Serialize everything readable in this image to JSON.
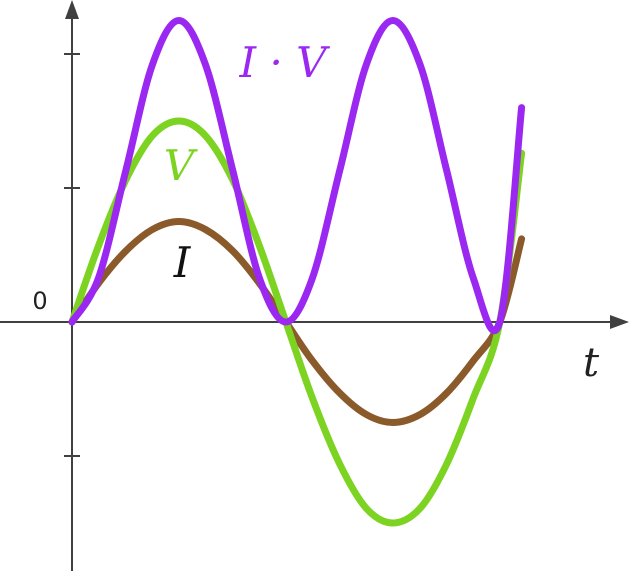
{
  "chart_data": {
    "type": "line",
    "title": "",
    "xlabel": "t",
    "ylabel": "",
    "origin_label": "0",
    "xlim": [
      0,
      6.3
    ],
    "ylim": [
      -1.5,
      2.25
    ],
    "grid": false,
    "legend": "none",
    "series": [
      {
        "name": "I",
        "color": "#8B5A2B",
        "x": [
          0,
          0.39,
          0.79,
          1.18,
          1.57,
          1.96,
          2.36,
          2.75,
          3.14,
          3.53,
          3.93,
          4.32,
          4.71,
          5.11,
          5.5,
          5.89,
          6.28,
          6.6
        ],
        "values": [
          0,
          0.29,
          0.53,
          0.69,
          0.75,
          0.69,
          0.53,
          0.29,
          0,
          -0.29,
          -0.53,
          -0.69,
          -0.75,
          -0.69,
          -0.53,
          -0.29,
          0,
          0.62
        ]
      },
      {
        "name": "V",
        "color": "#7DD321",
        "x": [
          0,
          0.39,
          0.79,
          1.18,
          1.57,
          1.96,
          2.36,
          2.75,
          3.14,
          3.53,
          3.93,
          4.32,
          4.71,
          5.11,
          5.5,
          5.89,
          6.28,
          6.6
        ],
        "values": [
          0,
          0.57,
          1.06,
          1.39,
          1.5,
          1.39,
          1.06,
          0.57,
          0,
          -0.57,
          -1.06,
          -1.39,
          -1.5,
          -1.39,
          -1.06,
          -0.57,
          0,
          1.26
        ]
      },
      {
        "name": "I · V",
        "color": "#9B28F0",
        "x": [
          0,
          0.39,
          0.79,
          1.18,
          1.57,
          1.96,
          2.36,
          2.75,
          3.14,
          3.53,
          3.93,
          4.32,
          4.71,
          5.11,
          5.5,
          5.89,
          6.28,
          6.6
        ],
        "values": [
          0,
          0.33,
          1.13,
          1.92,
          2.25,
          1.92,
          1.13,
          0.33,
          0,
          0.33,
          1.13,
          1.92,
          2.25,
          1.92,
          1.13,
          0.33,
          0,
          1.6
        ]
      }
    ]
  },
  "labels": {
    "origin": "0",
    "t_axis": "t",
    "I": "I",
    "V": "V",
    "IV": "I · V"
  }
}
